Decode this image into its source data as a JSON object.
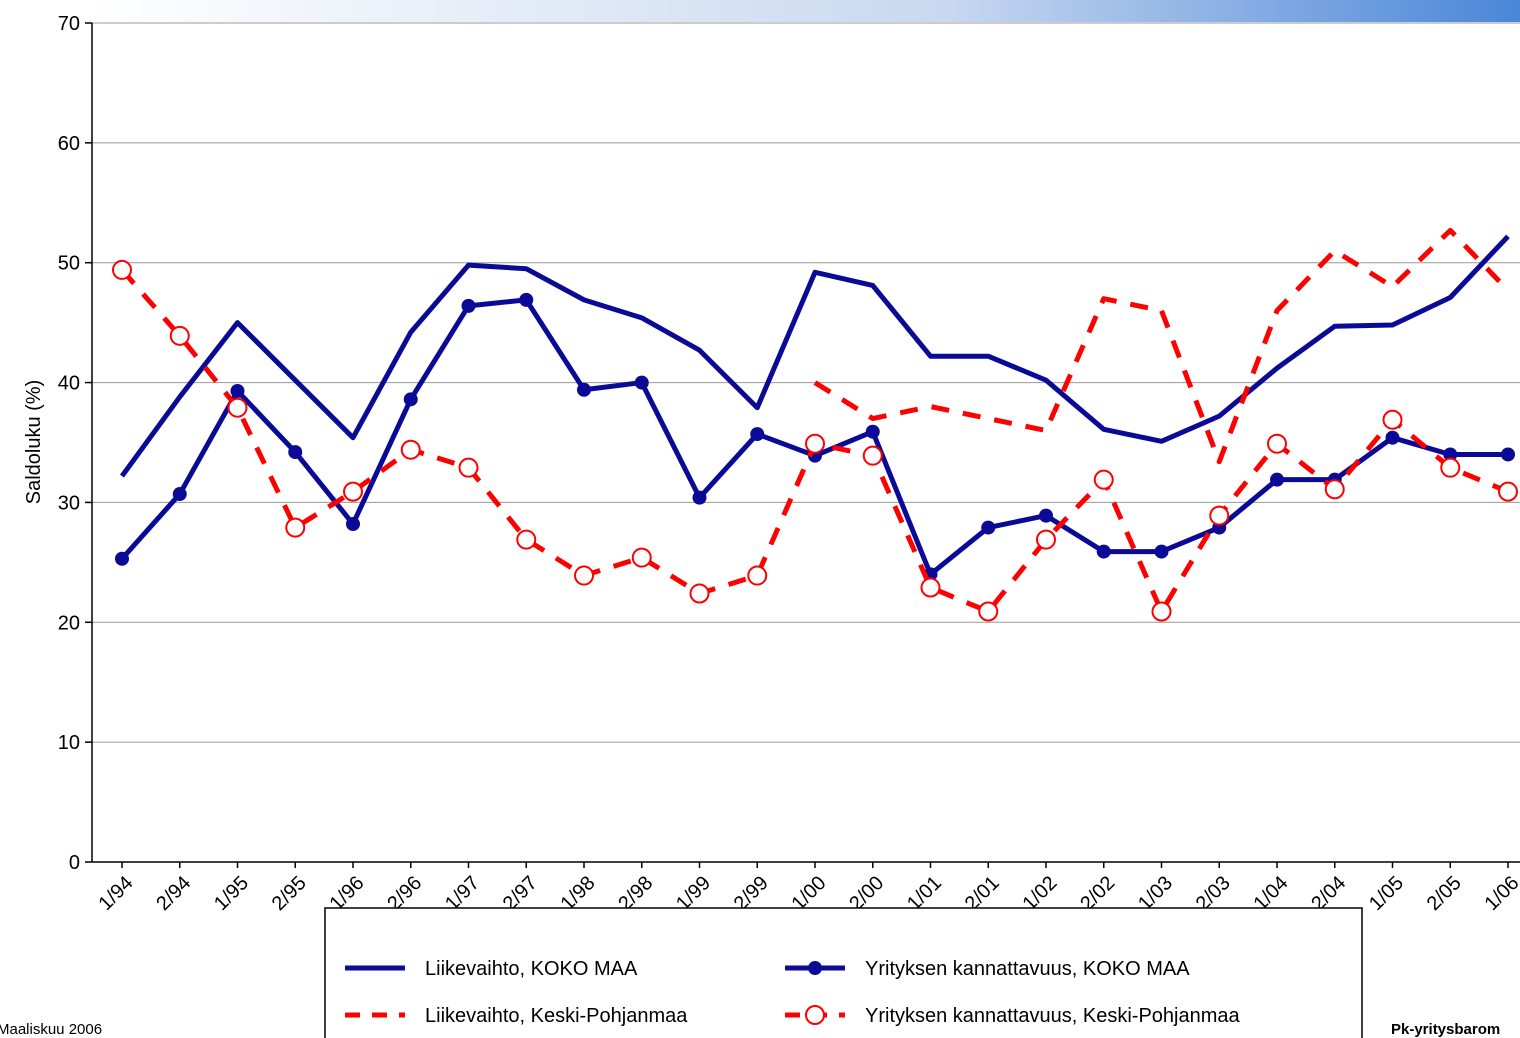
{
  "chart_data": {
    "type": "line",
    "y_label": "Saldoluku (%)",
    "footer_left": "Maaliskuu 2006",
    "footer_right": "Pk-yritysbarom",
    "categories": [
      "1/94",
      "2/94",
      "1/95",
      "2/95",
      "1/96",
      "2/96",
      "1/97",
      "2/97",
      "1/98",
      "2/98",
      "1/99",
      "2/99",
      "1/00",
      "2/00",
      "1/01",
      "2/01",
      "1/02",
      "2/02",
      "1/03",
      "2/03",
      "1/04",
      "2/04",
      "1/05",
      "2/05",
      "1/06"
    ],
    "ylim": [
      0,
      70
    ],
    "yticks": [
      0,
      10,
      20,
      30,
      40,
      50,
      60,
      70
    ],
    "grid": true,
    "series": [
      {
        "name": "Liikevaihto, KOKO MAA",
        "color": "#0a0a96",
        "dash": false,
        "marker": "none",
        "values": [
          32.2,
          38.8,
          45,
          40.2,
          35.4,
          44.2,
          49.8,
          49.5,
          46.9,
          45.4,
          42.7,
          37.9,
          49.2,
          48.1,
          42.2,
          42.2,
          40.2,
          36.1,
          35.1,
          37.2,
          41.2,
          44.7,
          44.8,
          47.1,
          52.2
        ]
      },
      {
        "name": "Yrityksen kannattavuus, KOKO MAA",
        "color": "#0a0a96",
        "dash": false,
        "marker": "filled",
        "values": [
          25.3,
          30.7,
          39.3,
          34.2,
          28.2,
          38.6,
          46.4,
          46.9,
          39.4,
          40,
          30.4,
          35.7,
          33.9,
          35.9,
          24,
          27.9,
          28.9,
          25.9,
          25.9,
          27.9,
          31.9,
          31.9,
          35.4,
          34,
          34
        ]
      },
      {
        "name": "Liikevaihto, Keski-Pohjanmaa",
        "color": "#ff0000",
        "dash": true,
        "marker": "none",
        "values": [
          null,
          null,
          null,
          null,
          null,
          null,
          null,
          null,
          null,
          null,
          null,
          null,
          40,
          37,
          38,
          37,
          36,
          47,
          46,
          33.4,
          46,
          51,
          48,
          52.7,
          47.7
        ]
      },
      {
        "name": "Yrityksen kannattavuus, Keski-Pohjanmaa",
        "color": "#ff0000",
        "dash": true,
        "marker": "open",
        "values": [
          49.4,
          43.9,
          37.9,
          27.9,
          30.9,
          34.4,
          32.9,
          26.9,
          23.9,
          25.4,
          22.4,
          23.9,
          34.9,
          33.9,
          22.9,
          20.9,
          26.9,
          31.9,
          20.9,
          28.9,
          34.9,
          31.1,
          36.9,
          32.9,
          30.9
        ]
      }
    ]
  }
}
